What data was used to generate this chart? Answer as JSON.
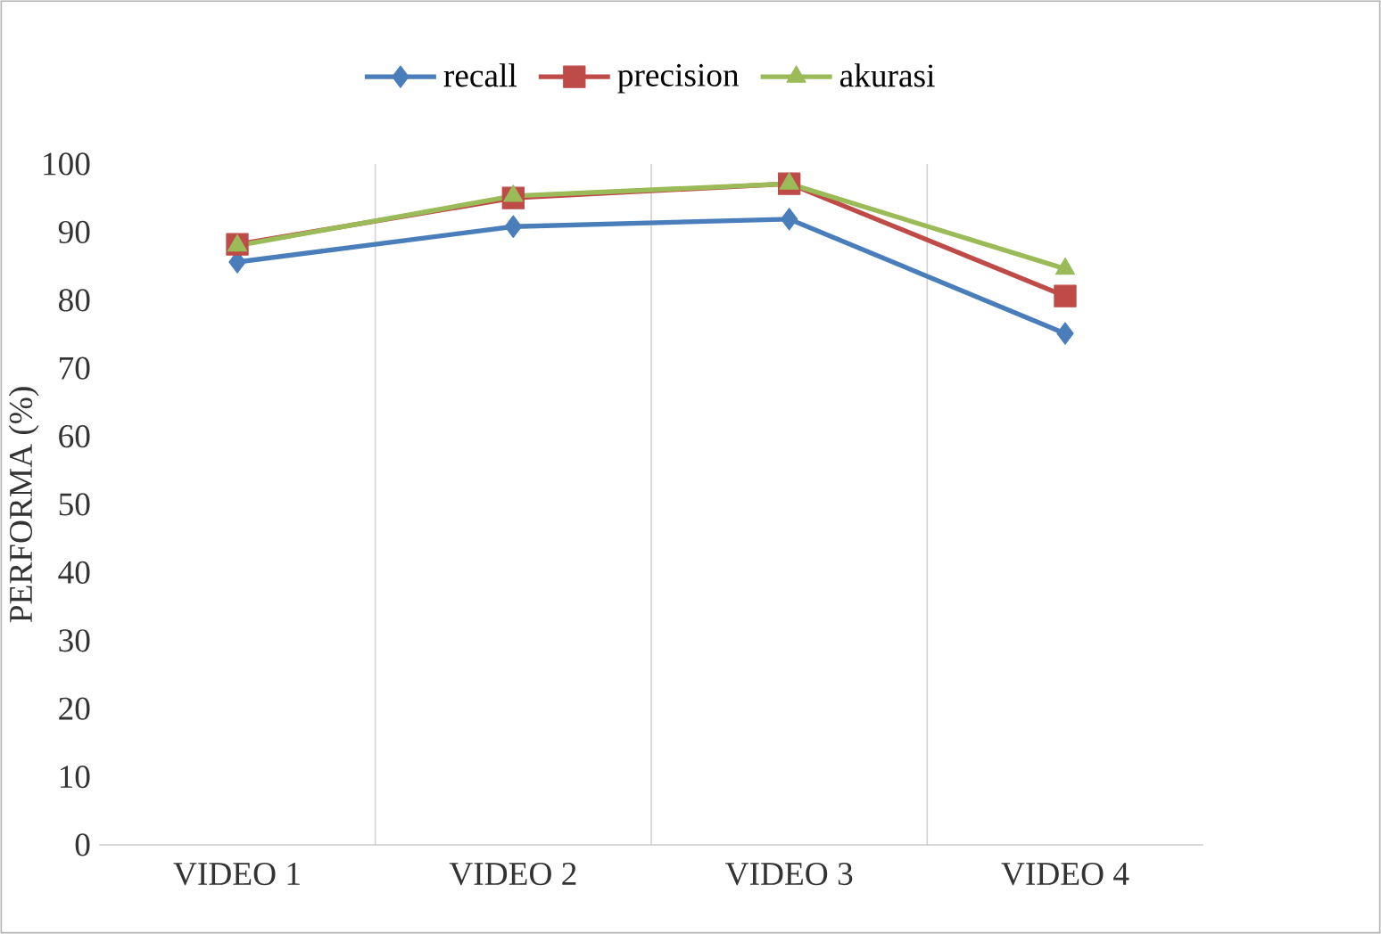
{
  "chart_data": {
    "type": "line",
    "ylabel": "PERFORMA (%)",
    "categories": [
      "VIDEO 1",
      "VIDEO 2",
      "VIDEO 3",
      "VIDEO 4"
    ],
    "series": [
      {
        "name": "recall",
        "color": "#4a7ebb",
        "marker": "diamond",
        "values": [
          85.6,
          90.8,
          91.9,
          75.1
        ]
      },
      {
        "name": "precision",
        "color": "#be4b48",
        "marker": "square",
        "values": [
          88.2,
          95.0,
          97.1,
          80.6
        ]
      },
      {
        "name": "akurasi",
        "color": "#9bbb59",
        "marker": "triangle",
        "values": [
          88.0,
          95.3,
          97.1,
          84.6
        ]
      }
    ],
    "ylim": [
      0,
      100
    ],
    "yticks": [
      0,
      10,
      20,
      30,
      40,
      50,
      60,
      70,
      80,
      90,
      100
    ],
    "grid": "x",
    "legend": "top"
  }
}
